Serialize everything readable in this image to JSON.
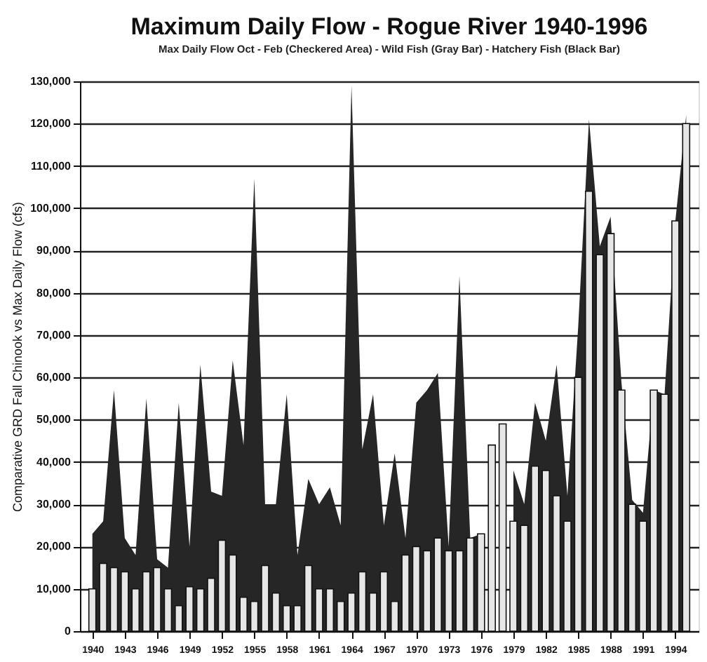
{
  "chart_data": {
    "type": "bar",
    "title": "Maximum Daily Flow - Rogue River 1940-1996",
    "subtitle": "Max Daily Flow Oct - Feb (Checkered Area) - Wild Fish (Gray Bar) - Hatchery Fish (Black Bar)",
    "ylabel": "Comparative GRD Fall Chinook vs Max Daily Flow (cfs)",
    "x": [
      1940,
      1941,
      1942,
      1943,
      1944,
      1945,
      1946,
      1947,
      1948,
      1949,
      1950,
      1951,
      1952,
      1953,
      1954,
      1955,
      1956,
      1957,
      1958,
      1959,
      1960,
      1961,
      1962,
      1963,
      1964,
      1965,
      1966,
      1967,
      1968,
      1969,
      1970,
      1971,
      1972,
      1973,
      1974,
      1975,
      1976,
      1977,
      1978,
      1979,
      1980,
      1981,
      1982,
      1983,
      1984,
      1985,
      1986,
      1987,
      1988,
      1989,
      1990,
      1991,
      1992,
      1993,
      1994,
      1995
    ],
    "series": [
      {
        "type": "area",
        "color": "#262626",
        "values": [
          23000,
          26000,
          57000,
          22000,
          18000,
          55000,
          17000,
          15000,
          54000,
          20000,
          63000,
          33000,
          32000,
          64000,
          44000,
          107000,
          30000,
          30000,
          56000,
          18000,
          36000,
          30000,
          34000,
          25000,
          129000,
          43000,
          56000,
          25000,
          42000,
          22000,
          54000,
          57000,
          61000,
          20000,
          84000,
          22000,
          23000,
          null,
          null,
          38000,
          30000,
          54000,
          45000,
          63000,
          32000,
          72000,
          121000,
          91000,
          98000,
          59000,
          31000,
          28000,
          57000,
          56000,
          97000,
          122000
        ]
      },
      {
        "color": "#e6e6e6",
        "values": [
          10000,
          16000,
          15000,
          14000,
          10000,
          14000,
          15000,
          10000,
          6000,
          10500,
          10000,
          12500,
          21500,
          18000,
          8000,
          7000,
          15500,
          9000,
          6000,
          6000,
          15500,
          10000,
          10000,
          7000,
          9000,
          14000,
          9000,
          14000,
          7000,
          18000,
          20000,
          19000,
          22000,
          19000,
          19000,
          22000,
          23000,
          44000,
          49000,
          26000,
          25000,
          39000,
          38000,
          32000,
          26000,
          60000,
          104000,
          89000,
          94000,
          57000,
          30000,
          26000,
          57000,
          56000,
          97000,
          120000
        ]
      }
    ],
    "xlim": [
      1939.5,
      1995.5
    ],
    "xticks": [
      1940,
      1943,
      1946,
      1949,
      1952,
      1955,
      1958,
      1961,
      1964,
      1967,
      1970,
      1973,
      1976,
      1979,
      1982,
      1985,
      1988,
      1991,
      1994
    ],
    "ylim": [
      0,
      130000
    ],
    "yticks": [
      0,
      {
        "value": 10000,
        "label": "10,000"
      },
      {
        "value": 20000,
        "label": "20,000"
      },
      {
        "value": 30000,
        "label": "30,000"
      },
      {
        "value": 40000,
        "label": "40,000"
      },
      {
        "value": 50000,
        "label": "50,000"
      },
      {
        "value": 60000,
        "label": "60,000"
      },
      {
        "value": 70000,
        "label": "70,000"
      },
      {
        "value": 80000,
        "label": "80,000"
      },
      {
        "value": 90000,
        "label": "90,000"
      },
      {
        "value": 100000,
        "label": "100,000"
      },
      {
        "value": 110000,
        "label": "110,000"
      },
      {
        "value": 120000,
        "label": "120,000"
      },
      {
        "value": 130000,
        "label": "130,000"
      }
    ],
    "grid": "y"
  }
}
